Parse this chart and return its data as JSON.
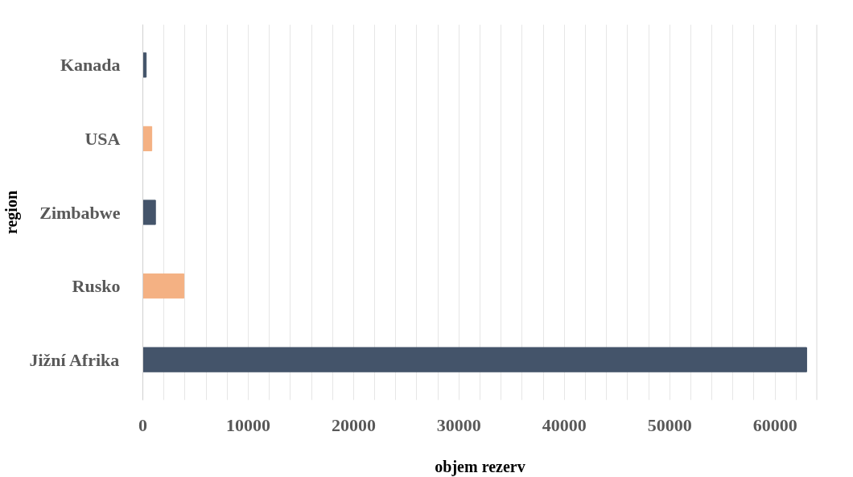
{
  "chart_data": {
    "type": "bar",
    "orientation": "horizontal",
    "xlabel": "objem rezerv",
    "ylabel": "region",
    "categories": [
      "Kanada",
      "USA",
      "Zimbabwe",
      "Rusko",
      "Jižní Afrika"
    ],
    "values": [
      320,
      850,
      1200,
      3900,
      63000
    ],
    "colors": [
      "#44546a",
      "#f4b183",
      "#44546a",
      "#f4b183",
      "#44546a"
    ],
    "xlim": [
      0,
      64000
    ],
    "xticks": [
      0,
      {
        "value": 2000,
        "label": null
      },
      {
        "value": 4000,
        "label": null
      },
      {
        "value": 6000,
        "label": null
      },
      {
        "value": 8000,
        "label": null
      },
      10000,
      {
        "value": 12000,
        "label": null
      },
      {
        "value": 14000,
        "label": null
      },
      {
        "value": 16000,
        "label": null
      },
      {
        "value": 18000,
        "label": null
      },
      20000,
      {
        "value": 22000,
        "label": null
      },
      {
        "value": 24000,
        "label": null
      },
      {
        "value": 26000,
        "label": null
      },
      {
        "value": 28000,
        "label": null
      },
      30000,
      {
        "value": 32000,
        "label": null
      },
      {
        "value": 34000,
        "label": null
      },
      {
        "value": 36000,
        "label": null
      },
      {
        "value": 38000,
        "label": null
      },
      40000,
      {
        "value": 42000,
        "label": null
      },
      {
        "value": 44000,
        "label": null
      },
      {
        "value": 46000,
        "label": null
      },
      {
        "value": 48000,
        "label": null
      },
      50000,
      {
        "value": 52000,
        "label": null
      },
      {
        "value": 54000,
        "label": null
      },
      {
        "value": 56000,
        "label": null
      },
      {
        "value": 58000,
        "label": null
      },
      60000,
      {
        "value": 62000,
        "label": null
      },
      {
        "value": 64000,
        "label": null
      }
    ],
    "grid": "x"
  }
}
